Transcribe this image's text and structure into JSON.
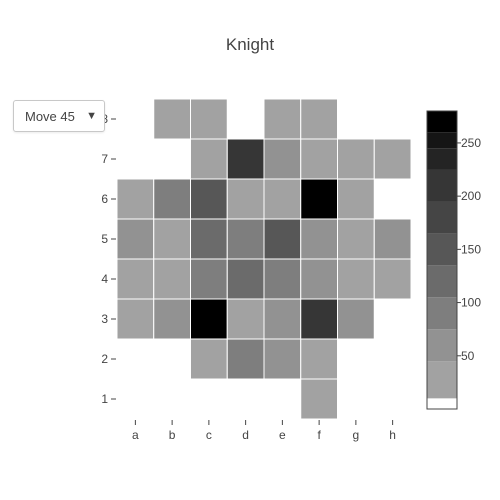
{
  "chart_data": {
    "type": "heatmap",
    "title": "Knight",
    "x_categories": [
      "a",
      "b",
      "c",
      "d",
      "e",
      "f",
      "g",
      "h"
    ],
    "y_categories": [
      "1",
      "2",
      "3",
      "4",
      "5",
      "6",
      "7",
      "8"
    ],
    "z": [
      [
        null,
        null,
        null,
        null,
        null,
        30,
        null,
        null
      ],
      [
        null,
        null,
        30,
        90,
        70,
        30,
        null,
        null
      ],
      [
        30,
        60,
        280,
        20,
        60,
        200,
        60,
        null
      ],
      [
        30,
        30,
        90,
        130,
        90,
        60,
        30,
        30
      ],
      [
        60,
        30,
        130,
        90,
        140,
        60,
        30,
        60
      ],
      [
        30,
        90,
        140,
        30,
        30,
        280,
        30,
        null
      ],
      [
        null,
        null,
        30,
        200,
        70,
        30,
        30,
        30
      ],
      [
        null,
        30,
        30,
        null,
        30,
        30,
        null,
        null
      ]
    ],
    "colorscale": {
      "zmin": 0,
      "zmax": 280,
      "ticks": [
        50,
        100,
        150,
        200,
        250
      ],
      "bands": [
        {
          "from": 0,
          "to": 10,
          "color": "#ffffff"
        },
        {
          "from": 10,
          "to": 45,
          "color": "#a2a2a2"
        },
        {
          "from": 45,
          "to": 75,
          "color": "#929292"
        },
        {
          "from": 75,
          "to": 105,
          "color": "#7e7e7e"
        },
        {
          "from": 105,
          "to": 135,
          "color": "#6b6b6b"
        },
        {
          "from": 135,
          "to": 165,
          "color": "#575757"
        },
        {
          "from": 165,
          "to": 195,
          "color": "#454545"
        },
        {
          "from": 195,
          "to": 225,
          "color": "#363636"
        },
        {
          "from": 225,
          "to": 245,
          "color": "#242424"
        },
        {
          "from": 245,
          "to": 260,
          "color": "#151515"
        },
        {
          "from": 260,
          "to": 281,
          "color": "#000000"
        }
      ]
    }
  },
  "dropdown": {
    "selected": "Move 45",
    "arrow": "▼"
  }
}
